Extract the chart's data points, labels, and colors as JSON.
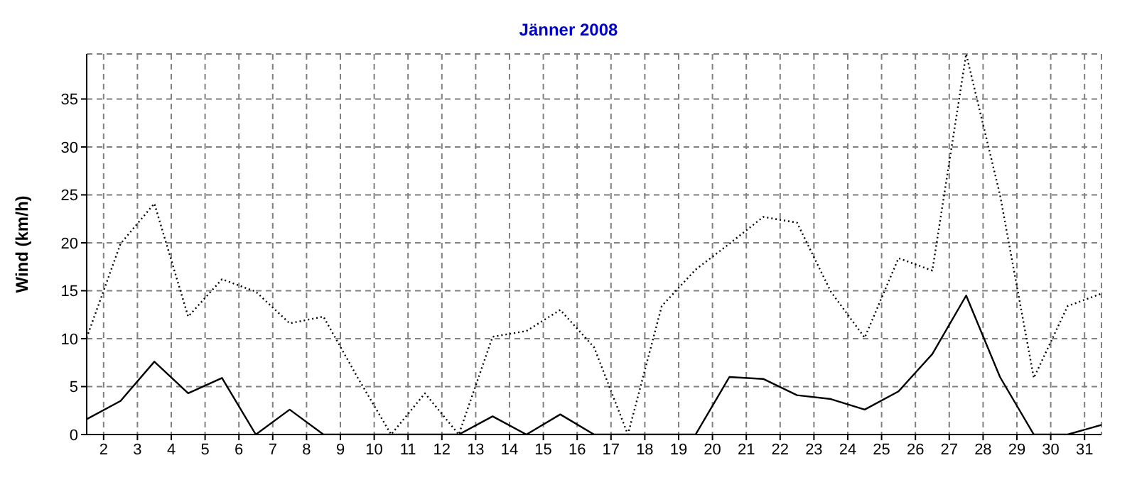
{
  "chart_data": {
    "type": "line",
    "title": "Jänner 2008",
    "ylabel": "Wind  (km/h)",
    "x": [
      1.5,
      2.5,
      3.5,
      4.5,
      5.5,
      6.5,
      7.5,
      8.5,
      9.5,
      10.5,
      11.5,
      12.5,
      13.5,
      14.5,
      15.5,
      16.5,
      17.5,
      18.5,
      19.5,
      20.5,
      21.5,
      22.5,
      23.5,
      24.5,
      25.5,
      26.5,
      27.5,
      28.5,
      29.5,
      30.5,
      31.5
    ],
    "series": [
      {
        "color": "#000000",
        "line_style": "dotted",
        "values": [
          10.1,
          19.9,
          24.1,
          12.3,
          16.2,
          14.9,
          11.6,
          12.3,
          6,
          0,
          4.3,
          0,
          10.2,
          10.8,
          13,
          9.1,
          0,
          13.4,
          17.2,
          19.9,
          22.7,
          22.1,
          14.9,
          10.1,
          18.4,
          17.1,
          39.7,
          25,
          5.9,
          13.4,
          14.7
        ]
      },
      {
        "color": "#000000",
        "line_style": "solid",
        "values": [
          1.6,
          3.5,
          7.6,
          4.3,
          5.9,
          0,
          2.6,
          0,
          0,
          0,
          0,
          0,
          1.9,
          0,
          2.1,
          0,
          0,
          0,
          0,
          6,
          5.8,
          4.1,
          3.7,
          2.6,
          4.5,
          8.4,
          14.5,
          6,
          0,
          0,
          1
        ]
      }
    ],
    "xlim": [
      1.5,
      31.5
    ],
    "xticks": [
      2,
      3,
      4,
      5,
      6,
      7,
      8,
      9,
      10,
      11,
      12,
      13,
      14,
      15,
      16,
      17,
      18,
      19,
      20,
      21,
      22,
      23,
      24,
      25,
      26,
      27,
      28,
      29,
      30,
      31
    ],
    "ylim": [
      0,
      39.7
    ],
    "yticks": [
      0,
      5,
      10,
      15,
      20,
      25,
      30,
      35
    ],
    "grid": true,
    "legend": false,
    "marker": "none"
  }
}
